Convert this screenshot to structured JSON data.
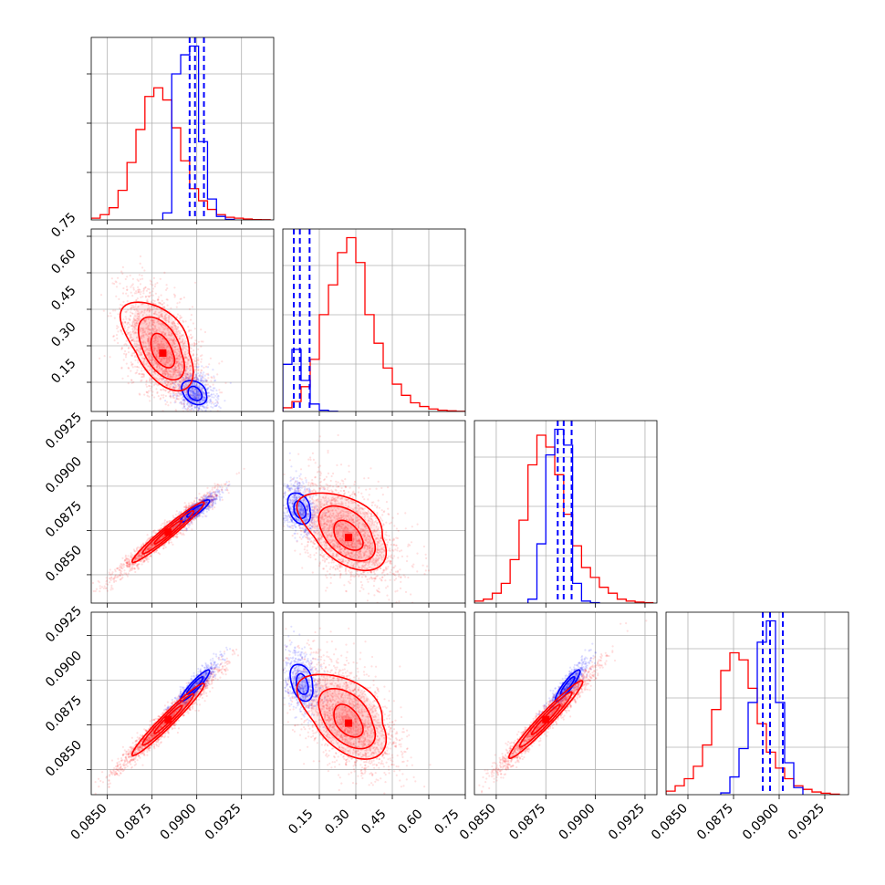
{
  "colors": {
    "red": "#ff0000",
    "blue": "#0000ff",
    "red_fill": "#ff6b6b",
    "grid": "#b0b0b0"
  },
  "chart_data": [
    {
      "type": "histogram",
      "panel": "p1-hist",
      "xlim": [
        0.0841,
        0.0943
      ],
      "series": [
        {
          "color": "red",
          "bins": [
            0.0841,
            0.0846,
            0.0851,
            0.0856,
            0.0861,
            0.0866,
            0.0871,
            0.0876,
            0.0881,
            0.0886,
            0.0891,
            0.0896,
            0.0901,
            0.0906,
            0.0911,
            0.0916,
            0.0921,
            0.0926,
            0.0931,
            0.0936,
            0.0941
          ],
          "counts": [
            1,
            3,
            7,
            17,
            33,
            52,
            71,
            76,
            69,
            53,
            34,
            18,
            11,
            6,
            3,
            1.5,
            1,
            0.5,
            0.2,
            0.1
          ]
        },
        {
          "color": "blue",
          "bins": [
            0.0881,
            0.0886,
            0.0891,
            0.0896,
            0.0901,
            0.0906,
            0.0911,
            0.0916,
            0.0921
          ],
          "counts": [
            4,
            84,
            95,
            100,
            45,
            12,
            2,
            0.3
          ]
        }
      ],
      "vlines": [
        0.0896,
        0.0899,
        0.0904
      ]
    },
    {
      "type": "histogram",
      "panel": "p2-hist",
      "xlim": [
        0.0,
        0.75
      ],
      "series": [
        {
          "color": "red",
          "bins": [
            0.0,
            0.0375,
            0.075,
            0.1125,
            0.15,
            0.1875,
            0.225,
            0.2625,
            0.3,
            0.3375,
            0.375,
            0.4125,
            0.45,
            0.4875,
            0.525,
            0.5625,
            0.6,
            0.6375,
            0.675,
            0.7125,
            0.75
          ],
          "counts": [
            3,
            8,
            20,
            42,
            78,
            102,
            128,
            140,
            120,
            78,
            55,
            35,
            22,
            13,
            7,
            4,
            2,
            1,
            0.5,
            0.2
          ]
        },
        {
          "color": "blue",
          "bins": [
            0.0,
            0.0375,
            0.075,
            0.1125,
            0.15,
            0.1875,
            0.225
          ],
          "counts": [
            38,
            50,
            25,
            6,
            1,
            0.2
          ]
        }
      ],
      "vlines": [
        0.045,
        0.07,
        0.11
      ]
    },
    {
      "type": "histogram",
      "panel": "p3-hist",
      "xlim": [
        0.0839,
        0.0931
      ],
      "series": [
        {
          "color": "red",
          "bins": [
            0.0839,
            0.08435,
            0.0848,
            0.08525,
            0.0857,
            0.08615,
            0.0866,
            0.08705,
            0.0875,
            0.08795,
            0.0884,
            0.08885,
            0.0893,
            0.08975,
            0.0902,
            0.09065,
            0.0911,
            0.09155,
            0.092,
            0.09245,
            0.0929
          ],
          "counts": [
            1,
            2,
            5,
            10,
            22,
            42,
            70,
            85,
            79,
            65,
            45,
            29,
            18,
            13,
            8,
            5,
            2,
            1,
            0.5,
            0.2
          ]
        },
        {
          "color": "blue",
          "bins": [
            0.0866,
            0.08705,
            0.0875,
            0.08795,
            0.0884,
            0.08885,
            0.0893,
            0.08975,
            0.0902
          ],
          "counts": [
            2,
            30,
            75,
            88,
            80,
            10,
            1,
            0.2
          ]
        }
      ],
      "vlines": [
        0.0881,
        0.0884,
        0.0888
      ]
    },
    {
      "type": "histogram",
      "panel": "p4-hist",
      "xlim": [
        0.0838,
        0.0938
      ],
      "series": [
        {
          "color": "red",
          "bins": [
            0.0838,
            0.0843,
            0.0848,
            0.0853,
            0.0858,
            0.0863,
            0.0868,
            0.0873,
            0.0878,
            0.0883,
            0.0888,
            0.0893,
            0.0898,
            0.0903,
            0.0908,
            0.0913,
            0.0918,
            0.0923,
            0.0928,
            0.0933
          ],
          "counts": [
            2,
            5,
            9,
            16,
            28,
            48,
            70,
            80,
            76,
            60,
            40,
            24,
            15,
            9,
            5,
            3,
            1.5,
            0.8,
            0.3
          ]
        },
        {
          "color": "blue",
          "bins": [
            0.0868,
            0.0873,
            0.0878,
            0.0883,
            0.0888,
            0.0893,
            0.0898,
            0.0903,
            0.0908,
            0.0913
          ],
          "counts": [
            1,
            10,
            26,
            52,
            86,
            98,
            52,
            18,
            4
          ]
        }
      ],
      "vlines": [
        0.0891,
        0.0895,
        0.0902
      ]
    },
    {
      "type": "scatter",
      "panel": "p2-vs-p1",
      "xlim": [
        0.0841,
        0.0943
      ],
      "ylim": [
        0.03,
        0.78
      ],
      "red": {
        "center": [
          0.0881,
          0.27
        ],
        "spread": [
          0.0011,
          0.1
        ],
        "corr": -0.5,
        "n": 2200
      },
      "blue": {
        "center": [
          0.0899,
          0.1
        ],
        "spread": [
          0.00055,
          0.035
        ],
        "corr": -0.3,
        "n": 700
      },
      "red_contours": [
        {
          "k": 0.6,
          "squeeze": 0.0
        },
        {
          "k": 1.1,
          "squeeze": 0.15
        },
        {
          "k": 1.55,
          "squeeze": 0.3
        }
      ],
      "blue_contours": [
        {
          "k": 0.7,
          "squeeze": 0.0
        },
        {
          "k": 1.2,
          "squeeze": 0.2
        }
      ]
    },
    {
      "type": "scatter",
      "panel": "p3-vs-p1",
      "xlim": [
        0.0841,
        0.0943
      ],
      "ylim": [
        0.0834,
        0.0937
      ],
      "red": {
        "center": [
          0.0884,
          0.0874
        ],
        "spread": [
          0.0013,
          0.0011
        ],
        "corr": 0.97,
        "n": 2200
      },
      "blue": {
        "center": [
          0.0899,
          0.0886
        ],
        "spread": [
          0.00065,
          0.0005
        ],
        "corr": 0.9,
        "n": 700
      },
      "red_contours": [
        {
          "k": 0.6,
          "squeeze": 0.0
        },
        {
          "k": 1.1,
          "squeeze": 0.0
        },
        {
          "k": 1.55,
          "squeeze": 0.0
        }
      ],
      "blue_contours": [
        {
          "k": 0.7,
          "squeeze": 0.0
        },
        {
          "k": 1.25,
          "squeeze": 0.0
        }
      ]
    },
    {
      "type": "scatter",
      "panel": "p3-vs-p2",
      "xlim": [
        0.0,
        0.75
      ],
      "ylim": [
        0.0834,
        0.0937
      ],
      "red": {
        "center": [
          0.27,
          0.0871
        ],
        "spread": [
          0.1,
          0.0012
        ],
        "corr": -0.45,
        "n": 2200
      },
      "blue": {
        "center": [
          0.07,
          0.0886
        ],
        "spread": [
          0.035,
          0.0006
        ],
        "corr": -0.3,
        "n": 700
      },
      "red_contours": [
        {
          "k": 0.6,
          "squeeze": 0.0
        },
        {
          "k": 1.1,
          "squeeze": 0.15
        },
        {
          "k": 1.55,
          "squeeze": 0.3
        }
      ],
      "blue_contours": [
        {
          "k": 0.7,
          "squeeze": 0.0
        },
        {
          "k": 1.25,
          "squeeze": 0.2
        }
      ]
    },
    {
      "type": "scatter",
      "panel": "p4-vs-p1",
      "xlim": [
        0.0841,
        0.0943
      ],
      "ylim": [
        0.0836,
        0.0938
      ],
      "red": {
        "center": [
          0.0884,
          0.0878
        ],
        "spread": [
          0.0013,
          0.0013
        ],
        "corr": 0.97,
        "n": 2200
      },
      "blue": {
        "center": [
          0.0899,
          0.0897
        ],
        "spread": [
          0.00065,
          0.0007
        ],
        "corr": 0.92,
        "n": 700
      },
      "red_contours": [
        {
          "k": 0.6,
          "squeeze": 0.0
        },
        {
          "k": 1.1,
          "squeeze": 0.0
        },
        {
          "k": 1.55,
          "squeeze": 0.0
        }
      ],
      "blue_contours": [
        {
          "k": 0.7,
          "squeeze": 0.0
        },
        {
          "k": 1.25,
          "squeeze": 0.0
        }
      ]
    },
    {
      "type": "scatter",
      "panel": "p4-vs-p2",
      "xlim": [
        0.0,
        0.75
      ],
      "ylim": [
        0.0836,
        0.0938
      ],
      "red": {
        "center": [
          0.27,
          0.0876
        ],
        "spread": [
          0.1,
          0.0013
        ],
        "corr": -0.45,
        "n": 2200
      },
      "blue": {
        "center": [
          0.08,
          0.0897
        ],
        "spread": [
          0.035,
          0.0007
        ],
        "corr": -0.3,
        "n": 700
      },
      "red_contours": [
        {
          "k": 0.6,
          "squeeze": 0.0
        },
        {
          "k": 1.1,
          "squeeze": 0.15
        },
        {
          "k": 1.55,
          "squeeze": 0.3
        }
      ],
      "blue_contours": [
        {
          "k": 0.7,
          "squeeze": 0.0
        },
        {
          "k": 1.25,
          "squeeze": 0.2
        }
      ]
    },
    {
      "type": "scatter",
      "panel": "p4-vs-p3",
      "xlim": [
        0.0839,
        0.0931
      ],
      "ylim": [
        0.0836,
        0.0938
      ],
      "red": {
        "center": [
          0.0875,
          0.0878
        ],
        "spread": [
          0.0012,
          0.0014
        ],
        "corr": 0.97,
        "n": 2200
      },
      "blue": {
        "center": [
          0.0886,
          0.0897
        ],
        "spread": [
          0.0005,
          0.0007
        ],
        "corr": 0.9,
        "n": 700
      },
      "red_contours": [
        {
          "k": 0.6,
          "squeeze": 0.0
        },
        {
          "k": 1.1,
          "squeeze": 0.0
        },
        {
          "k": 1.55,
          "squeeze": 0.0
        }
      ],
      "blue_contours": [
        {
          "k": 0.7,
          "squeeze": 0.0
        },
        {
          "k": 1.25,
          "squeeze": 0.0
        }
      ]
    }
  ],
  "tick_labels": {
    "p1": [
      "0.0850",
      "0.0875",
      "0.0900",
      "0.0925"
    ],
    "p2": [
      "0.15",
      "0.30",
      "0.45",
      "0.60",
      "0.75"
    ],
    "p3": [
      "0.0850",
      "0.0875",
      "0.0900",
      "0.0925"
    ],
    "p4": [
      "0.0850",
      "0.0875",
      "0.0900",
      "0.0925"
    ]
  },
  "tick_values": {
    "p1": [
      0.085,
      0.0875,
      0.09,
      0.0925
    ],
    "p2": [
      0.15,
      0.3,
      0.45,
      0.6,
      0.75
    ],
    "p3": [
      0.085,
      0.0875,
      0.09,
      0.0925
    ],
    "p4": [
      0.085,
      0.0875,
      0.09,
      0.0925
    ]
  }
}
